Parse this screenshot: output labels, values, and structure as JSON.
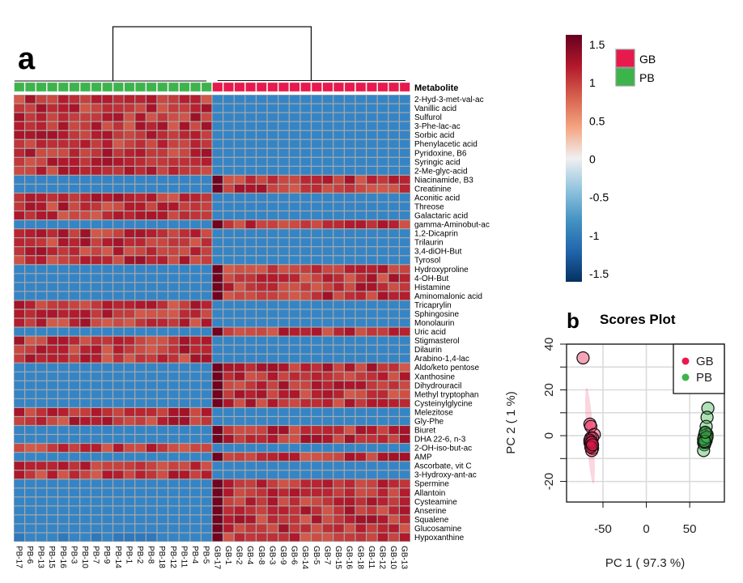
{
  "panel_a_label": "a",
  "panel_b_label": "b",
  "chart_data": [
    {
      "type": "heatmap",
      "title": "",
      "annotation_title": "Metabolite",
      "groups": [
        {
          "name": "GB",
          "color": "#e8194d"
        },
        {
          "name": "PB",
          "color": "#3cb44b"
        }
      ],
      "columns": [
        "PB-17",
        "PB-6",
        "PB-13",
        "PB-15",
        "PB-16",
        "PB-3",
        "PB-10",
        "PB-7",
        "PB-9",
        "PB-14",
        "PB-1",
        "PB-2",
        "PB-8",
        "PB-18",
        "PB-12",
        "PB-11",
        "PB-4",
        "PB-5",
        "GB-17",
        "GB-1",
        "GB-2",
        "GB-4",
        "GB-8",
        "GB-3",
        "GB-9",
        "GB-6",
        "GB-14",
        "GB-5",
        "GB-7",
        "GB-15",
        "GB-16",
        "GB-18",
        "GB-11",
        "GB-12",
        "GB-10",
        "GB-13"
      ],
      "column_groups": [
        "PB",
        "PB",
        "PB",
        "PB",
        "PB",
        "PB",
        "PB",
        "PB",
        "PB",
        "PB",
        "PB",
        "PB",
        "PB",
        "PB",
        "PB",
        "PB",
        "PB",
        "PB",
        "GB",
        "GB",
        "GB",
        "GB",
        "GB",
        "GB",
        "GB",
        "GB",
        "GB",
        "GB",
        "GB",
        "GB",
        "GB",
        "GB",
        "GB",
        "GB",
        "GB",
        "GB"
      ],
      "rows": [
        {
          "name": "2-Hyd-3-met-val-ac",
          "high": "PB"
        },
        {
          "name": "Vanillic acid",
          "high": "PB"
        },
        {
          "name": "Sulfurol",
          "high": "PB"
        },
        {
          "name": "3-Phe-lac-ac",
          "high": "PB"
        },
        {
          "name": "Sorbic acid",
          "high": "PB"
        },
        {
          "name": "Phenylacetic acid",
          "high": "PB"
        },
        {
          "name": "Pyridoxine, B6",
          "high": "PB"
        },
        {
          "name": "Syringic acid",
          "high": "PB"
        },
        {
          "name": "2-Me-glyc-acid",
          "high": "PB"
        },
        {
          "name": "Niacinamide, B3",
          "high": "GB"
        },
        {
          "name": "Creatinine",
          "high": "GB"
        },
        {
          "name": "Aconitic acid",
          "high": "PB"
        },
        {
          "name": "Threose",
          "high": "PB"
        },
        {
          "name": "Galactaric acid",
          "high": "PB"
        },
        {
          "name": "gamma-Aminobut-ac",
          "high": "GB"
        },
        {
          "name": "1,2-Dicaprin",
          "high": "PB"
        },
        {
          "name": "Trilaurin",
          "high": "PB"
        },
        {
          "name": "3,4-diOH-But",
          "high": "PB"
        },
        {
          "name": "Tyrosol",
          "high": "PB"
        },
        {
          "name": "Hydroxyproline",
          "high": "GB"
        },
        {
          "name": "4-OH-But",
          "high": "GB"
        },
        {
          "name": "Histamine",
          "high": "GB"
        },
        {
          "name": "Aminomalonic acid",
          "high": "GB"
        },
        {
          "name": "Tricaprylin",
          "high": "PB"
        },
        {
          "name": "Sphingosine",
          "high": "PB"
        },
        {
          "name": "Monolaurin",
          "high": "PB"
        },
        {
          "name": "Uric acid",
          "high": "GB"
        },
        {
          "name": "Stigmasterol",
          "high": "PB"
        },
        {
          "name": "Dilaurin",
          "high": "PB"
        },
        {
          "name": "Arabino-1,4-lac",
          "high": "PB"
        },
        {
          "name": "Aldo/keto pentose",
          "high": "GB"
        },
        {
          "name": "Xanthosine",
          "high": "GB"
        },
        {
          "name": "Dihydrouracil",
          "high": "GB"
        },
        {
          "name": "Methyl tryptophan",
          "high": "GB"
        },
        {
          "name": "Cysteinylglycine",
          "high": "GB"
        },
        {
          "name": "Melezitose",
          "high": "PB"
        },
        {
          "name": "Gly-Phe",
          "high": "PB"
        },
        {
          "name": "Biuret",
          "high": "GB"
        },
        {
          "name": "DHA 22-6, n-3",
          "high": "GB"
        },
        {
          "name": "2-OH-iso-but-ac",
          "high": "PB"
        },
        {
          "name": "AMP",
          "high": "GB"
        },
        {
          "name": "Ascorbate, vit C",
          "high": "PB"
        },
        {
          "name": "3-Hydroxy-ant-ac",
          "high": "PB"
        },
        {
          "name": "Spermine",
          "high": "GB"
        },
        {
          "name": "Allantoin",
          "high": "GB"
        },
        {
          "name": "Cysteamine",
          "high": "GB"
        },
        {
          "name": "Anserine",
          "high": "GB"
        },
        {
          "name": "Squalene",
          "high": "GB"
        },
        {
          "name": "Glucosamine",
          "high": "GB"
        },
        {
          "name": "Hypoxanthine",
          "high": "GB"
        }
      ],
      "value_high_approx": 1.0,
      "value_low_approx": -1.0,
      "color_scale": {
        "range": [
          -1.5,
          1.5
        ],
        "ticks": [
          "1.5",
          "1",
          "0.5",
          "0",
          "-0.5",
          "-1",
          "-1.5"
        ],
        "tick_values": [
          1.5,
          1,
          0.5,
          0,
          -0.5,
          -1,
          -1.5
        ],
        "stops": [
          "#053061",
          "#2166ac",
          "#4393c3",
          "#92c5de",
          "#f0f0f0",
          "#f4a582",
          "#d6604d",
          "#b2182b",
          "#67001f"
        ]
      },
      "cell_low_color": "#3585c6",
      "cell_high_color": "#d9453a",
      "grid_color": "#a8a8a8",
      "dendrogram": "two clusters: PB (left) and GB (right)"
    },
    {
      "type": "scatter",
      "title": "Scores Plot",
      "xlabel": "PC 1 ( 97.3 %)",
      "ylabel": "PC 2 ( 1 %)",
      "xlim": [
        -92,
        90
      ],
      "ylim": [
        -29,
        40
      ],
      "xticks": [
        -50,
        0,
        50
      ],
      "xtick_labels": [
        "-50",
        "0",
        "50"
      ],
      "yticks": [
        -20,
        -10,
        0,
        10,
        20,
        30,
        40
      ],
      "ytick_labels": [
        "-20",
        "",
        "0",
        "",
        "20",
        "",
        "40"
      ],
      "grid": true,
      "legend_position": "top-right",
      "series": [
        {
          "name": "GB",
          "color": "#e8194d",
          "points": [
            [
              -73,
              34
            ],
            [
              -65,
              5
            ],
            [
              -64,
              4
            ],
            [
              -60,
              0.5
            ],
            [
              -64,
              -1
            ],
            [
              -65,
              -2
            ],
            [
              -64,
              -3
            ],
            [
              -64,
              -4
            ],
            [
              -63,
              -4.5
            ],
            [
              -65,
              -3
            ],
            [
              -62,
              -5.5
            ],
            [
              -63,
              -6.5
            ],
            [
              -64,
              -2.5
            ],
            [
              -62,
              -1
            ],
            [
              -65,
              -2
            ],
            [
              -63,
              -3
            ],
            [
              -64,
              -5
            ],
            [
              -62,
              -4
            ]
          ]
        },
        {
          "name": "PB",
          "color": "#3cb44b",
          "points": [
            [
              71,
              12
            ],
            [
              70,
              8
            ],
            [
              69,
              4
            ],
            [
              68,
              1
            ],
            [
              70,
              0.5
            ],
            [
              67,
              -1
            ],
            [
              69,
              -2
            ],
            [
              66,
              -3
            ],
            [
              67,
              -4
            ],
            [
              66,
              -6.5
            ],
            [
              68,
              -2
            ],
            [
              67,
              0
            ],
            [
              69,
              -1
            ],
            [
              68,
              -3
            ],
            [
              66,
              -1.5
            ],
            [
              70,
              -0.5
            ],
            [
              67,
              -2.5
            ],
            [
              68,
              1.5
            ]
          ]
        }
      ],
      "ellipse": {
        "group": "GB",
        "center": [
          -65,
          0
        ],
        "x_half": 4,
        "y_half": 21,
        "color": "#e8194d"
      }
    }
  ]
}
